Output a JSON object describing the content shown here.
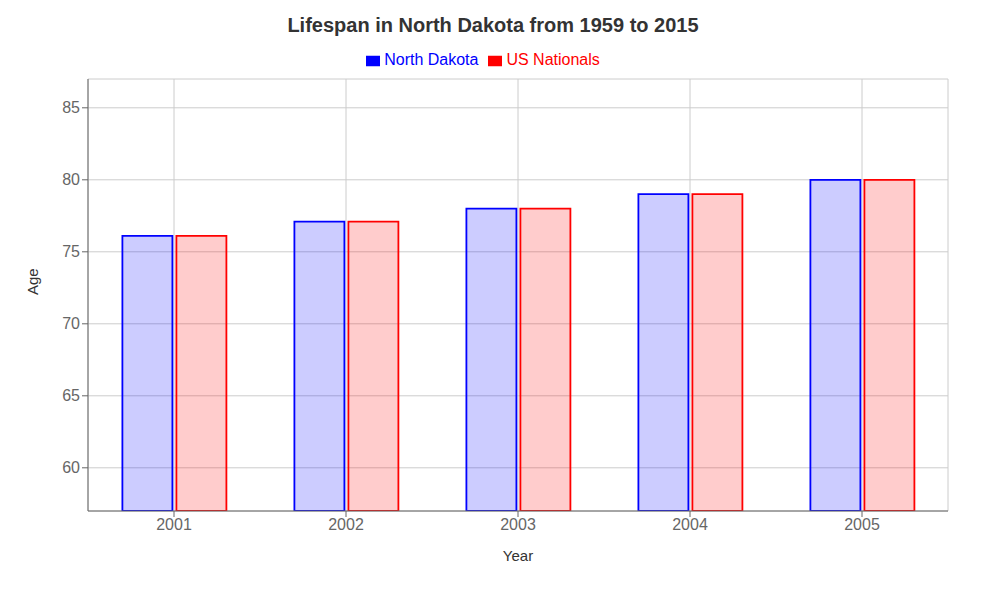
{
  "chart_data": {
    "type": "bar",
    "title": "Lifespan in North Dakota from 1959 to 2015",
    "xlabel": "Year",
    "ylabel": "Age",
    "categories": [
      "2001",
      "2002",
      "2003",
      "2004",
      "2005"
    ],
    "series": [
      {
        "name": "North Dakota",
        "color": "#0000ff",
        "values": [
          76.1,
          77.1,
          78.0,
          79.0,
          80.0
        ]
      },
      {
        "name": "US Nationals",
        "color": "#ff0000",
        "values": [
          76.1,
          77.1,
          78.0,
          79.0,
          80.0
        ]
      }
    ],
    "ylim": [
      57,
      87
    ],
    "yticks": [
      60,
      65,
      70,
      75,
      80,
      85
    ],
    "grid": true,
    "legend": "top"
  }
}
